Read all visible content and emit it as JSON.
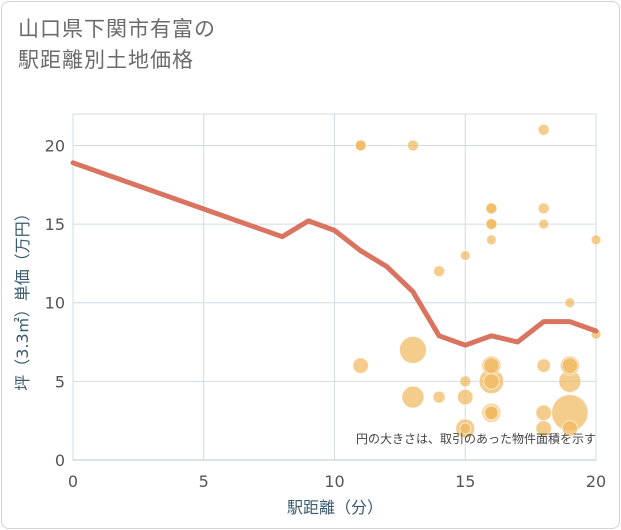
{
  "title_line1": "山口県下関市有富の",
  "title_line2": "駅距離別土地価格",
  "chart_data": {
    "type": "scatter",
    "xlabel": "駅距離（分）",
    "ylabel": "坪（3.3㎡）単価（万円）",
    "xlim": [
      0,
      20
    ],
    "ylim": [
      0,
      22
    ],
    "x_ticks": [
      0,
      5,
      10,
      15,
      20
    ],
    "y_ticks": [
      0,
      5,
      10,
      15,
      20
    ],
    "grid": true,
    "note": "円の大きさは、取引のあった物件面積を示す",
    "point_color": "#f0b860",
    "line_color": "#d87460",
    "points": [
      {
        "x": 11,
        "y": 20,
        "size": 1
      },
      {
        "x": 11,
        "y": 20,
        "size": 1
      },
      {
        "x": 13,
        "y": 20,
        "size": 1
      },
      {
        "x": 18,
        "y": 21,
        "size": 1
      },
      {
        "x": 16,
        "y": 16,
        "size": 1
      },
      {
        "x": 16,
        "y": 16,
        "size": 1
      },
      {
        "x": 18,
        "y": 16,
        "size": 1
      },
      {
        "x": 16,
        "y": 15,
        "size": 1
      },
      {
        "x": 16,
        "y": 15,
        "size": 1
      },
      {
        "x": 18,
        "y": 15,
        "size": 0.8
      },
      {
        "x": 16,
        "y": 14,
        "size": 0.8
      },
      {
        "x": 20,
        "y": 14,
        "size": 0.8
      },
      {
        "x": 15,
        "y": 13,
        "size": 0.8
      },
      {
        "x": 14,
        "y": 12,
        "size": 1
      },
      {
        "x": 19,
        "y": 10,
        "size": 0.8
      },
      {
        "x": 20,
        "y": 8,
        "size": 0.8
      },
      {
        "x": 13,
        "y": 7,
        "size": 6
      },
      {
        "x": 11,
        "y": 6,
        "size": 2
      },
      {
        "x": 16,
        "y": 6,
        "size": 3
      },
      {
        "x": 16,
        "y": 6,
        "size": 2
      },
      {
        "x": 18,
        "y": 6,
        "size": 1.5
      },
      {
        "x": 19,
        "y": 6,
        "size": 3
      },
      {
        "x": 19,
        "y": 6,
        "size": 2
      },
      {
        "x": 15,
        "y": 5,
        "size": 1
      },
      {
        "x": 16,
        "y": 5,
        "size": 5
      },
      {
        "x": 16,
        "y": 5,
        "size": 2
      },
      {
        "x": 19,
        "y": 5,
        "size": 4
      },
      {
        "x": 13,
        "y": 4,
        "size": 4
      },
      {
        "x": 14,
        "y": 4,
        "size": 1.2
      },
      {
        "x": 15,
        "y": 4,
        "size": 2
      },
      {
        "x": 16,
        "y": 3,
        "size": 3
      },
      {
        "x": 16,
        "y": 3,
        "size": 2
      },
      {
        "x": 16,
        "y": 3,
        "size": 1.5
      },
      {
        "x": 18,
        "y": 3,
        "size": 2
      },
      {
        "x": 19,
        "y": 3,
        "size": 11
      },
      {
        "x": 15,
        "y": 2,
        "size": 3
      },
      {
        "x": 15,
        "y": 2,
        "size": 1
      },
      {
        "x": 18,
        "y": 2,
        "size": 2
      },
      {
        "x": 19,
        "y": 2,
        "size": 2
      }
    ],
    "trend_line": [
      {
        "x": 0,
        "y": 18.9
      },
      {
        "x": 8,
        "y": 14.2
      },
      {
        "x": 9,
        "y": 15.2
      },
      {
        "x": 10,
        "y": 14.6
      },
      {
        "x": 11,
        "y": 13.3
      },
      {
        "x": 12,
        "y": 12.3
      },
      {
        "x": 13,
        "y": 10.7
      },
      {
        "x": 14,
        "y": 7.9
      },
      {
        "x": 15,
        "y": 7.3
      },
      {
        "x": 16,
        "y": 7.9
      },
      {
        "x": 17,
        "y": 7.5
      },
      {
        "x": 18,
        "y": 8.8
      },
      {
        "x": 19,
        "y": 8.8
      },
      {
        "x": 20,
        "y": 8.2
      }
    ]
  }
}
